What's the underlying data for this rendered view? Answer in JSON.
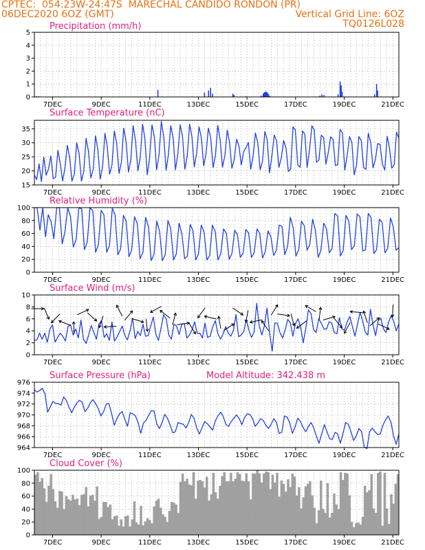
{
  "header": {
    "line1_left": "CPTEC:  054:23W-24:47S  MARECHAL CANDIDO RONDON (PR)",
    "line2_left": "06DEC2020 6OZ (GMT)",
    "line2_right": "Vertical Grid Line: 6OZ",
    "line3_right": "TQ0126L028",
    "text_color": "#e87010"
  },
  "colors": {
    "title": "#e0207a",
    "series": "#2040e0",
    "cloud_fill": "#a0a0a0",
    "grid": "#888888"
  },
  "chart_data": [
    {
      "type": "bar",
      "title": "Precipitation (mm/h)",
      "ylim": [
        0,
        5
      ],
      "yticks": [
        "0",
        "1",
        "2",
        "3",
        "4",
        "5"
      ],
      "xticks": [
        "7DEC",
        "9DEC",
        "11DEC",
        "13DEC",
        "15DEC",
        "17DEC",
        "19DEC",
        "21DEC"
      ],
      "x_unit": "hours since 06DEC2020 06Z",
      "bars": [
        [
          2,
          0.05
        ],
        [
          4,
          0.05
        ],
        [
          122,
          0.55
        ],
        [
          168,
          0.35
        ],
        [
          172,
          0.5
        ],
        [
          174,
          0.7
        ],
        [
          176,
          0.25
        ],
        [
          196,
          0.25
        ],
        [
          197,
          0.15
        ],
        [
          209,
          0.05
        ],
        [
          224,
          0.1
        ],
        [
          226,
          0.25
        ],
        [
          227,
          0.35
        ],
        [
          228,
          0.4
        ],
        [
          229,
          0.4
        ],
        [
          230,
          0.35
        ],
        [
          231,
          0.25
        ],
        [
          232,
          0.1
        ],
        [
          282,
          0.1
        ],
        [
          284,
          0.2
        ],
        [
          286,
          0.15
        ],
        [
          300,
          0.2
        ],
        [
          302,
          1.2
        ],
        [
          303,
          0.9
        ],
        [
          304,
          0.4
        ],
        [
          336,
          0.2
        ],
        [
          338,
          1.0
        ],
        [
          339,
          0.5
        ]
      ]
    },
    {
      "type": "line",
      "title": "Surface Temperature (nC)",
      "ylim": [
        15,
        38
      ],
      "yticks": [
        "15",
        "20",
        "25",
        "30",
        "35"
      ],
      "xticks": [
        "7DEC",
        "9DEC",
        "11DEC",
        "13DEC",
        "15DEC",
        "17DEC",
        "19DEC",
        "21DEC"
      ],
      "values": [
        18.5,
        16.9,
        22.5,
        16.2,
        24.9,
        18.5,
        20.7,
        25.3,
        17.2,
        17.7,
        27.3,
        22.8,
        16.4,
        21.1,
        29.1,
        24.7,
        16.4,
        18.9,
        30.0,
        26.2,
        16.4,
        19.8,
        31.6,
        27.0,
        17.5,
        20.5,
        32.5,
        27.5,
        17.1,
        21.5,
        33.4,
        28.6,
        18.8,
        22.1,
        34.2,
        29.8,
        19.1,
        23.0,
        35.2,
        30.4,
        19.6,
        24.0,
        36.1,
        30.9,
        20.1,
        24.6,
        36.6,
        31.6,
        18.6,
        24.6,
        36.4,
        32.2,
        20.4,
        25.6,
        37.6,
        32.2,
        20.2,
        25.8,
        36.1,
        31.8,
        20.4,
        26.1,
        36.4,
        32.3,
        20.6,
        25.4,
        36.6,
        32.2,
        21.4,
        26.2,
        35.7,
        31.8,
        21.8,
        26.0,
        35.2,
        31.6,
        21.2,
        25.6,
        36.2,
        31.1,
        21.3,
        25.4,
        34.5,
        30.2,
        20.9,
        24.2,
        31.3,
        28.7,
        22.1,
        26.8,
        28.3,
        30.1,
        20.6,
        25.2,
        33.5,
        30.0,
        20.4,
        23.4,
        34.0,
        31.2,
        19.3,
        25.3,
        32.8,
        30.6,
        21.3,
        24.6,
        30.8,
        28.1,
        19.8,
        20.7,
        35.7,
        34.5,
        22.1,
        21.3,
        34.2,
        33.1,
        21.3,
        27.4,
        36.1,
        34.6,
        23.1,
        23.8,
        32.7,
        31.9,
        22.4,
        26.6,
        32.1,
        31.2,
        21.9,
        22.2,
        34.7,
        33.6,
        20.3,
        25.4,
        32.2,
        30.3,
        18.6,
        22.2,
        32.2,
        30.8,
        21.2,
        20.5,
        33.4,
        30.2,
        21.1,
        23.9,
        29.7,
        29.4,
        22.4,
        20.3,
        32.3,
        28.2,
        21.0,
        22.1,
        33.8,
        31.6
      ]
    },
    {
      "type": "line",
      "title": "Relative Humidity (%)",
      "ylim": [
        0,
        100
      ],
      "yticks": [
        "0",
        "20",
        "40",
        "60",
        "80",
        "100"
      ],
      "xticks": [
        "7DEC",
        "9DEC",
        "11DEC",
        "13DEC",
        "15DEC",
        "17DEC",
        "19DEC",
        "21DEC"
      ],
      "values": [
        100,
        100,
        65,
        100,
        55,
        89,
        78,
        52,
        100,
        100,
        44,
        63,
        100,
        86,
        39,
        51,
        100,
        98,
        35,
        47,
        100,
        95,
        31,
        43,
        96,
        89,
        31,
        41,
        99,
        89,
        27,
        36,
        88,
        79,
        24,
        35,
        86,
        75,
        21,
        31,
        85,
        70,
        18,
        28,
        79,
        63,
        18,
        27,
        80,
        68,
        19,
        28,
        76,
        60,
        21,
        25,
        74,
        64,
        19,
        29,
        73,
        62,
        19,
        26,
        73,
        63,
        19,
        29,
        67,
        60,
        20,
        29,
        65,
        58,
        23,
        29,
        66,
        61,
        23,
        30,
        67,
        60,
        22,
        32,
        64,
        55,
        26,
        34,
        73,
        71,
        27,
        40,
        85,
        69,
        25,
        35,
        79,
        72,
        34,
        43,
        82,
        65,
        23,
        34,
        76,
        67,
        30,
        37,
        91,
        87,
        25,
        34,
        88,
        79,
        35,
        41,
        90,
        86,
        33,
        35,
        91,
        85,
        29,
        35,
        82,
        77,
        30,
        37,
        84,
        70,
        34,
        38
      ]
    },
    {
      "type": "line",
      "title": "Surface Wind (m/s)",
      "ylim": [
        0,
        10
      ],
      "yticks": [
        "0",
        "2",
        "4",
        "6",
        "8",
        "10"
      ],
      "xticks": [
        "7DEC",
        "9DEC",
        "11DEC",
        "13DEC",
        "15DEC",
        "17DEC",
        "19DEC",
        "21DEC"
      ],
      "values": [
        2.4,
        2.5,
        3.6,
        2.6,
        3.6,
        2.1,
        4.3,
        5.0,
        2.1,
        2.9,
        3.6,
        3.1,
        2.3,
        4.7,
        5.0,
        3.3,
        4.3,
        2.8,
        5.8,
        2.6,
        1.9,
        3.3,
        4.9,
        3.7,
        2.6,
        5.2,
        5.7,
        2.9,
        3.5,
        2.4,
        5.5,
        2.3,
        3.0,
        3.9,
        4.8,
        3.2,
        2.5,
        4.0,
        6.1,
        2.7,
        3.9,
        3.2,
        5.1,
        3.1,
        3.2,
        4.8,
        6.3,
        3.4,
        2.4,
        4.5,
        6.7,
        6.0,
        3.3,
        2.6,
        5.1,
        4.8,
        3.4,
        5.1,
        5.2,
        2.8,
        3.3,
        4.2,
        5.5,
        3.6,
        3.6,
        2.8,
        5.3,
        2.9,
        3.1,
        4.7,
        5.7,
        3.5,
        2.6,
        3.5,
        4.7,
        3.6,
        3.1,
        4.1,
        6.7,
        3.0,
        3.3,
        3.9,
        5.9,
        4.1,
        2.9,
        3.8,
        8.6,
        4.8,
        3.3,
        4.9,
        7.8,
        3.6,
        0.6,
        5.3,
        5.3,
        3.7,
        2.8,
        4.1,
        5.9,
        5.4,
        3.1,
        5.2,
        6.0,
        4.6,
        2.0,
        4.4,
        7.5,
        6.9,
        4.2,
        3.7,
        6.0,
        5.3,
        4.3,
        4.3,
        5.5,
        5.3,
        3.7,
        3.5,
        6.2,
        4.3,
        4.1,
        5.5,
        6.4,
        4.8,
        3.1,
        5.1,
        7.1,
        5.6,
        3.8,
        3.3,
        7.6,
        5.0,
        3.2,
        5.7,
        6.1,
        4.4,
        3.7,
        5.4,
        6.5,
        5.6,
        4.0,
        5.2
      ]
    },
    {
      "type": "line",
      "title": "Surface Pressure (hPa)",
      "annotation": "Model Altitude: 342.438 m",
      "ylim": [
        964,
        976
      ],
      "yticks": [
        "964",
        "966",
        "968",
        "970",
        "972",
        "974",
        "976"
      ],
      "xticks": [
        "7DEC",
        "9DEC",
        "11DEC",
        "13DEC",
        "15DEC",
        "17DEC",
        "19DEC",
        "21DEC"
      ],
      "values": [
        974.6,
        974.2,
        974.5,
        974.9,
        973.8,
        970.5,
        971.5,
        972.5,
        972.1,
        972.1,
        971.8,
        973.3,
        972.7,
        971.4,
        970.4,
        971.4,
        972.2,
        972.7,
        972.3,
        970.6,
        971.2,
        972.2,
        972.8,
        972.1,
        971.2,
        969.8,
        970.6,
        972.0,
        972.1,
        970.3,
        968.1,
        969.3,
        970.2,
        970.6,
        969.2,
        967.9,
        970.4,
        970.2,
        969.8,
        968.6,
        966.6,
        968.5,
        969.0,
        970.0,
        970.8,
        970.7,
        968.3,
        967.5,
        968.6,
        970.1,
        969.4,
        968.2,
        966.7,
        966.9,
        968.6,
        968.4,
        968.3,
        967.6,
        968.6,
        970.1,
        969.4,
        967.6,
        966.5,
        967.6,
        968.8,
        968.4,
        967.8,
        967.2,
        968.9,
        969.8,
        970.5,
        969.7,
        968.2,
        967.9,
        968.8,
        969.4,
        970.0,
        969.3,
        968.2,
        969.5,
        970.2,
        970.1,
        969.3,
        967.9,
        968.5,
        969.3,
        969.0,
        968.1,
        967.5,
        968.3,
        969.3,
        968.6,
        966.6,
        966.8,
        969.8,
        969.6,
        968.5,
        966.6,
        967.8,
        969.4,
        968.8,
        967.7,
        966.9,
        967.9,
        968.6,
        967.6,
        966.1,
        964.8,
        966.5,
        968.2,
        966.9,
        965.6,
        965.5,
        966.8,
        966.5,
        964.8,
        966.6,
        968.6,
        968.3,
        966.9,
        965.3,
        966.2,
        967.5,
        966.9,
        964.1,
        963.8,
        966.9,
        967.6,
        966.9,
        966.4,
        966.5,
        968.1,
        969.1,
        969.8,
        968.7,
        966.1,
        964.6,
        966.5
      ]
    },
    {
      "type": "bar",
      "title": "Cloud Cover (%)",
      "ylim": [
        0,
        100
      ],
      "yticks": [
        "0",
        "20",
        "40",
        "60",
        "80",
        "100"
      ],
      "xticks": [
        "7DEC",
        "9DEC",
        "11DEC",
        "13DEC",
        "15DEC",
        "17DEC",
        "19DEC",
        "21DEC"
      ],
      "values": [
        93,
        97,
        82,
        88,
        72,
        51,
        76,
        94,
        71,
        52,
        42,
        68,
        67,
        40,
        60,
        55,
        53,
        62,
        55,
        56,
        46,
        62,
        63,
        74,
        44,
        61,
        62,
        53,
        75,
        25,
        28,
        51,
        51,
        43,
        47,
        24,
        29,
        30,
        14,
        24,
        13,
        29,
        30,
        13,
        24,
        52,
        19,
        16,
        45,
        15,
        21,
        26,
        23,
        18,
        44,
        53,
        56,
        42,
        32,
        28,
        20,
        37,
        51,
        50,
        47,
        34,
        82,
        95,
        83,
        87,
        78,
        77,
        97,
        56,
        84,
        85,
        83,
        73,
        90,
        53,
        63,
        96,
        66,
        56,
        76,
        91,
        97,
        83,
        83,
        96,
        83,
        87,
        97,
        94,
        84,
        83,
        95,
        83,
        55,
        95,
        95,
        100,
        95,
        81,
        95,
        98,
        97,
        71,
        93,
        81,
        96,
        59,
        84,
        79,
        67,
        86,
        74,
        95,
        90,
        61,
        74,
        41,
        58,
        75,
        79,
        83,
        61,
        42,
        18,
        38,
        84,
        40,
        34,
        80,
        27,
        34,
        64,
        47,
        40,
        97,
        85,
        96,
        95,
        61,
        20,
        12,
        18,
        19,
        16,
        28,
        76,
        66,
        69,
        94,
        41,
        34,
        96,
        98,
        14,
        96,
        41,
        17,
        63,
        48,
        79,
        94
      ]
    }
  ]
}
